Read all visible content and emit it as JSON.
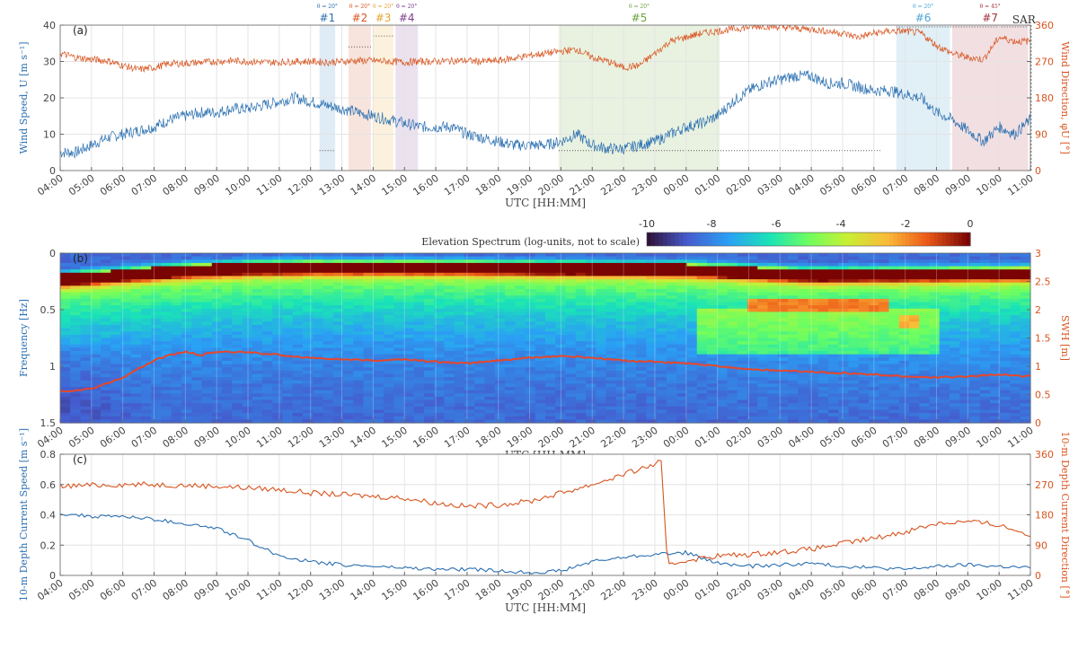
{
  "colors": {
    "blue": "#2a6fb0",
    "orange": "#d8541f",
    "axis": "#555555",
    "grid": "#e4e4e4"
  },
  "time_ticks": [
    "04:00",
    "05:00",
    "06:00",
    "07:00",
    "08:00",
    "09:00",
    "10:00",
    "11:00",
    "12:00",
    "13:00",
    "14:00",
    "15:00",
    "16:00",
    "17:00",
    "18:00",
    "19:00",
    "20:00",
    "21:00",
    "22:00",
    "23:00",
    "00:00",
    "01:00",
    "02:00",
    "03:00",
    "04:00",
    "05:00",
    "06:00",
    "07:00",
    "08:00",
    "09:00",
    "10:00",
    "11:00"
  ],
  "xlabel": "UTC [HH:MM]",
  "chart_data": [
    {
      "type": "line",
      "panel_label": "(a)",
      "x_range_hours": [
        0,
        31
      ],
      "left_axis": {
        "label": "Wind Speed, U [m s⁻¹]",
        "lim": [
          0,
          40
        ],
        "ticks": [
          0,
          10,
          20,
          30,
          40
        ]
      },
      "right_axis": {
        "label": "Wind Direction, φU [°]",
        "lim": [
          0,
          360
        ],
        "ticks": [
          0,
          90,
          180,
          270,
          360
        ]
      },
      "series": [
        {
          "axis": "left",
          "color": "blue",
          "noise": 1.6,
          "x": [
            0,
            0.5,
            1,
            1.5,
            2,
            2.5,
            3,
            3.5,
            4,
            4.5,
            5,
            5.5,
            6,
            6.5,
            7,
            7.5,
            8,
            8.5,
            9,
            9.5,
            10,
            10.5,
            11,
            11.5,
            12,
            12.5,
            13,
            13.5,
            14,
            14.5,
            15,
            15.5,
            16,
            16.5,
            17,
            17.5,
            18,
            18.5,
            19,
            19.5,
            20,
            20.5,
            21,
            21.5,
            22,
            22.5,
            23,
            23.5,
            24,
            24.5,
            25,
            25.5,
            26,
            26.5,
            27,
            27.5,
            28,
            28.5,
            29,
            29.5,
            30,
            30.5,
            31
          ],
          "y": [
            5,
            5,
            7,
            9,
            10,
            11,
            12,
            14,
            15,
            16,
            16,
            17,
            17,
            18,
            19,
            20,
            19,
            18,
            17,
            16,
            15,
            14,
            13,
            12,
            12,
            12,
            10,
            9,
            8,
            7,
            7,
            7,
            8,
            10,
            7,
            6,
            6,
            7,
            8,
            10,
            12,
            13,
            15,
            19,
            22,
            24,
            25,
            26,
            26,
            24,
            24,
            23,
            22,
            22,
            21,
            20,
            16,
            14,
            11,
            8,
            12,
            10,
            14
          ]
        },
        {
          "axis": "right",
          "color": "orange",
          "noise": 9,
          "x": [
            0,
            0.5,
            1,
            1.5,
            2,
            2.5,
            3,
            3.5,
            4,
            4.5,
            5,
            5.5,
            6,
            6.5,
            7,
            7.5,
            8,
            8.5,
            9,
            9.5,
            10,
            10.5,
            11,
            11.5,
            12,
            12.5,
            13,
            13.5,
            14,
            14.5,
            15,
            15.5,
            16,
            16.5,
            17,
            17.5,
            18,
            18.5,
            19,
            19.5,
            20,
            20.5,
            21,
            21.5,
            22,
            22.5,
            23,
            23.5,
            24,
            24.5,
            25,
            25.5,
            26,
            26.5,
            27,
            27.5,
            28,
            28.5,
            29,
            29.5,
            30,
            30.5,
            31
          ],
          "y": [
            290,
            280,
            275,
            272,
            260,
            250,
            255,
            265,
            265,
            268,
            270,
            272,
            270,
            268,
            268,
            270,
            270,
            268,
            270,
            272,
            272,
            270,
            268,
            270,
            270,
            272,
            272,
            270,
            272,
            278,
            285,
            290,
            295,
            300,
            280,
            270,
            255,
            260,
            290,
            320,
            330,
            340,
            345,
            350,
            355,
            358,
            355,
            352,
            350,
            345,
            340,
            330,
            340,
            345,
            345,
            340,
            310,
            290,
            280,
            275,
            330,
            320,
            320
          ]
        }
      ],
      "events": [
        {
          "label": "#1",
          "angle": "θ = 20°",
          "start": 11.6,
          "end": 12.3,
          "color": "#2a6fb0",
          "fill": "#d9e7f3"
        },
        {
          "label": "#2",
          "angle": "θ = 20°",
          "start": 12.9,
          "end": 13.9,
          "color": "#d8541f",
          "fill": "#f6dfd6"
        },
        {
          "label": "#3",
          "angle": "θ = 20°",
          "start": 14.0,
          "end": 14.9,
          "color": "#e5a330",
          "fill": "#fbefd6"
        },
        {
          "label": "#4",
          "angle": "θ = 20°",
          "start": 15.0,
          "end": 16.0,
          "color": "#7e3d92",
          "fill": "#e7dcec"
        },
        {
          "label": "#5",
          "angle": "θ = 20°",
          "start": 22.3,
          "end": 29.5,
          "color": "#6aa23c",
          "fill": "#e5f0da"
        },
        {
          "label": "#6",
          "angle": "θ = 20°",
          "start": 37.4,
          "end": 39.8,
          "color": "#4aa6d8",
          "fill": "#dcecf6"
        },
        {
          "label": "#7",
          "angle": "θ = 45°",
          "start": 39.9,
          "end": 43.3,
          "color": "#a33040",
          "fill": "#f0d9dd"
        }
      ],
      "sar_label": "SAR",
      "sar_time": 37.25
    },
    {
      "type": "heatmap",
      "panel_label": "(b)",
      "colorbar": {
        "label": "Elevation Spectrum (log-units, not to scale)",
        "range": [
          -10,
          0
        ],
        "ticks": [
          "-10",
          "-8",
          "-6",
          "-4",
          "-2",
          "0"
        ]
      },
      "left_axis": {
        "label": "Frequency [Hz]",
        "lim": [
          0,
          1.5
        ],
        "ticks": [
          "0",
          "0.5",
          "1",
          "1.5"
        ],
        "reversed": true
      },
      "right_axis": {
        "label": "SWH [m]",
        "lim": [
          0,
          3
        ],
        "ticks": [
          "0",
          "0.5",
          "1",
          "1.5",
          "2",
          "2.5",
          "3"
        ]
      },
      "peak_frequency": {
        "x": [
          0,
          2,
          4,
          6,
          8,
          12,
          16,
          20,
          24,
          28,
          31
        ],
        "y": [
          0.22,
          0.18,
          0.14,
          0.12,
          0.11,
          0.11,
          0.12,
          0.13,
          0.18,
          0.17,
          0.16
        ]
      },
      "swh_series": {
        "x": [
          0,
          1,
          2,
          2.5,
          3,
          3.5,
          4,
          4.5,
          5,
          6,
          7,
          8,
          9,
          10,
          11,
          12,
          13,
          14,
          15,
          16,
          17,
          18,
          19,
          20,
          21,
          22,
          23,
          24,
          25,
          26,
          27,
          28,
          29,
          30,
          31
        ],
        "y": [
          0.55,
          0.6,
          0.8,
          0.95,
          1.1,
          1.2,
          1.25,
          1.2,
          1.25,
          1.25,
          1.2,
          1.15,
          1.12,
          1.1,
          1.12,
          1.08,
          1.05,
          1.1,
          1.15,
          1.18,
          1.15,
          1.1,
          1.08,
          1.05,
          1.0,
          0.95,
          0.92,
          0.9,
          0.88,
          0.85,
          0.82,
          0.8,
          0.82,
          0.85,
          0.82
        ]
      }
    },
    {
      "type": "line",
      "panel_label": "(c)",
      "left_axis": {
        "label": "10-m Depth Current Speed [m s⁻¹]",
        "lim": [
          0,
          0.8
        ],
        "ticks": [
          "0",
          "0.2",
          "0.4",
          "0.6",
          "0.8"
        ]
      },
      "right_axis": {
        "label": "10-m Depth Current Direction [°]",
        "lim": [
          0,
          360
        ],
        "ticks": [
          0,
          90,
          180,
          270,
          360
        ]
      },
      "series": [
        {
          "axis": "left",
          "color": "blue",
          "noise": 0.012,
          "x": [
            0,
            1,
            2,
            3,
            4,
            5,
            6,
            7,
            8,
            9,
            10,
            11,
            12,
            13,
            14,
            15,
            16,
            17,
            18,
            19,
            20,
            21,
            22,
            23,
            24,
            25,
            26,
            27,
            28,
            29,
            30,
            31
          ],
          "y": [
            0.41,
            0.39,
            0.39,
            0.37,
            0.34,
            0.31,
            0.23,
            0.13,
            0.09,
            0.07,
            0.06,
            0.05,
            0.04,
            0.04,
            0.03,
            0.02,
            0.03,
            0.09,
            0.12,
            0.14,
            0.15,
            0.08,
            0.06,
            0.07,
            0.08,
            0.06,
            0.05,
            0.04,
            0.06,
            0.07,
            0.06,
            0.05
          ]
        },
        {
          "axis": "right",
          "color": "orange",
          "noise": 8,
          "x": [
            0,
            1,
            2,
            3,
            4,
            5,
            6,
            7,
            8,
            9,
            10,
            11,
            12,
            13,
            14,
            15,
            16,
            17,
            18,
            19,
            19.2,
            19.4,
            20,
            21,
            22,
            23,
            24,
            25,
            26,
            27,
            28,
            29,
            30,
            31
          ],
          "y": [
            265,
            268,
            270,
            270,
            268,
            265,
            260,
            255,
            245,
            240,
            235,
            230,
            215,
            205,
            210,
            220,
            245,
            270,
            300,
            330,
            340,
            30,
            45,
            58,
            62,
            70,
            78,
            95,
            110,
            130,
            155,
            160,
            150,
            120
          ]
        }
      ]
    }
  ]
}
